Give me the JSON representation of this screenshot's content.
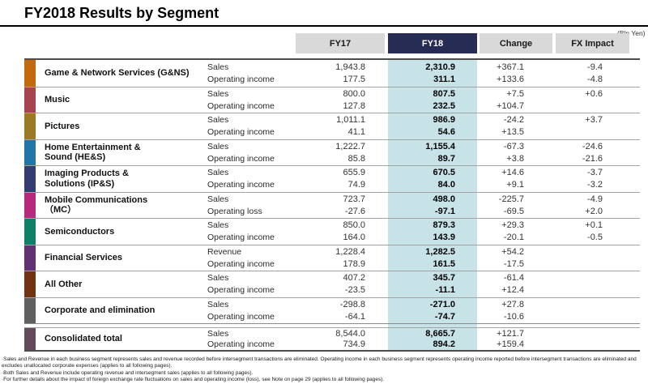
{
  "title": "FY2018 Results by Segment",
  "unit_note": "(Bln Yen)",
  "columns": {
    "fy17": "FY17",
    "fy18": "FY18",
    "change": "Change",
    "fx": "FX Impact"
  },
  "colors": {
    "fy18_header": "#272c55",
    "fy18_highlight": "#c8e3e8",
    "header_gray": "#d9d9d9"
  },
  "segments": [
    {
      "name": "Game & Network Services (G&NS)",
      "color": "#c4690e",
      "rows": [
        {
          "label": "Sales",
          "fy17": "1,943.8",
          "fy18": "2,310.9",
          "change": "+367.1",
          "fx": "-9.4"
        },
        {
          "label": "Operating income",
          "fy17": "177.5",
          "fy18": "311.1",
          "change": "+133.6",
          "fx": "-4.8"
        }
      ]
    },
    {
      "name": "Music",
      "color": "#a84350",
      "rows": [
        {
          "label": "Sales",
          "fy17": "800.0",
          "fy18": "807.5",
          "change": "+7.5",
          "fx": "+0.6"
        },
        {
          "label": "Operating income",
          "fy17": "127.8",
          "fy18": "232.5",
          "change": "+104.7",
          "fx": ""
        }
      ]
    },
    {
      "name": "Pictures",
      "color": "#9c7a23",
      "rows": [
        {
          "label": "Sales",
          "fy17": "1,011.1",
          "fy18": "986.9",
          "change": "-24.2",
          "fx": "+3.7"
        },
        {
          "label": "Operating income",
          "fy17": "41.1",
          "fy18": "54.6",
          "change": "+13.5",
          "fx": ""
        }
      ]
    },
    {
      "name": "Home Entertainment &\nSound (HE&S)",
      "color": "#2176a6",
      "rows": [
        {
          "label": "Sales",
          "fy17": "1,222.7",
          "fy18": "1,155.4",
          "change": "-67.3",
          "fx": "-24.6"
        },
        {
          "label": "Operating income",
          "fy17": "85.8",
          "fy18": "89.7",
          "change": "+3.8",
          "fx": "-21.6"
        }
      ]
    },
    {
      "name": "Imaging Products &\nSolutions (IP&S)",
      "color": "#343d72",
      "rows": [
        {
          "label": "Sales",
          "fy17": "655.9",
          "fy18": "670.5",
          "change": "+14.6",
          "fx": "-3.7"
        },
        {
          "label": "Operating income",
          "fy17": "74.9",
          "fy18": "84.0",
          "change": "+9.1",
          "fx": "-3.2"
        }
      ]
    },
    {
      "name": "Mobile Communications\n（MC）",
      "color": "#b52a7c",
      "rows": [
        {
          "label": "Sales",
          "fy17": "723.7",
          "fy18": "498.0",
          "change": "-225.7",
          "fx": "-4.9"
        },
        {
          "label": "Operating loss",
          "fy17": "-27.6",
          "fy18": "-97.1",
          "change": "-69.5",
          "fx": "+2.0"
        }
      ]
    },
    {
      "name": "Semiconductors",
      "color": "#0e8068",
      "rows": [
        {
          "label": "Sales",
          "fy17": "850.0",
          "fy18": "879.3",
          "change": "+29.3",
          "fx": "+0.1"
        },
        {
          "label": "Operating income",
          "fy17": "164.0",
          "fy18": "143.9",
          "change": "-20.1",
          "fx": "-0.5"
        }
      ]
    },
    {
      "name": "Financial Services",
      "color": "#603173",
      "rows": [
        {
          "label": "Revenue",
          "fy17": "1,228.4",
          "fy18": "1,282.5",
          "change": "+54.2",
          "fx": ""
        },
        {
          "label": "Operating income",
          "fy17": "178.9",
          "fy18": "161.5",
          "change": "-17.5",
          "fx": ""
        }
      ]
    },
    {
      "name": "All Other",
      "color": "#703413",
      "rows": [
        {
          "label": "Sales",
          "fy17": "407.2",
          "fy18": "345.7",
          "change": "-61.4",
          "fx": ""
        },
        {
          "label": "Operating income",
          "fy17": "-23.5",
          "fy18": "-11.1",
          "change": "+12.4",
          "fx": ""
        }
      ]
    },
    {
      "name": "Corporate and elimination",
      "color": "#606060",
      "rows": [
        {
          "label": "Sales",
          "fy17": "-298.8",
          "fy18": "-271.0",
          "change": "+27.8",
          "fx": ""
        },
        {
          "label": "Operating income",
          "fy17": "-64.1",
          "fy18": "-74.7",
          "change": "-10.6",
          "fx": ""
        }
      ]
    },
    {
      "name": "Consolidated total",
      "color": "#634a5d",
      "is_total": true,
      "rows": [
        {
          "label": "Sales",
          "fy17": "8,544.0",
          "fy18": "8,665.7",
          "change": "+121.7",
          "fx": ""
        },
        {
          "label": "Operating income",
          "fy17": "734.9",
          "fy18": "894.2",
          "change": "+159.4",
          "fx": ""
        }
      ]
    }
  ],
  "footnotes": [
    "·Sales and Revenue in each business segment represents sales and revenue recorded before intersegment transactions are eliminated.  Operating income in each business segment represents operating income reported before intersegment transactions are eliminated and excludes unallocated corporate expenses (applies to all following pages).",
    "·Both Sales and Revenue include operating revenue and intersegment sales (applies to all following pages).",
    "·For further details about the impact of foreign exchange rate fluctuations on sales and operating income (loss), see Note on page 29 (applies to all following pages)."
  ]
}
